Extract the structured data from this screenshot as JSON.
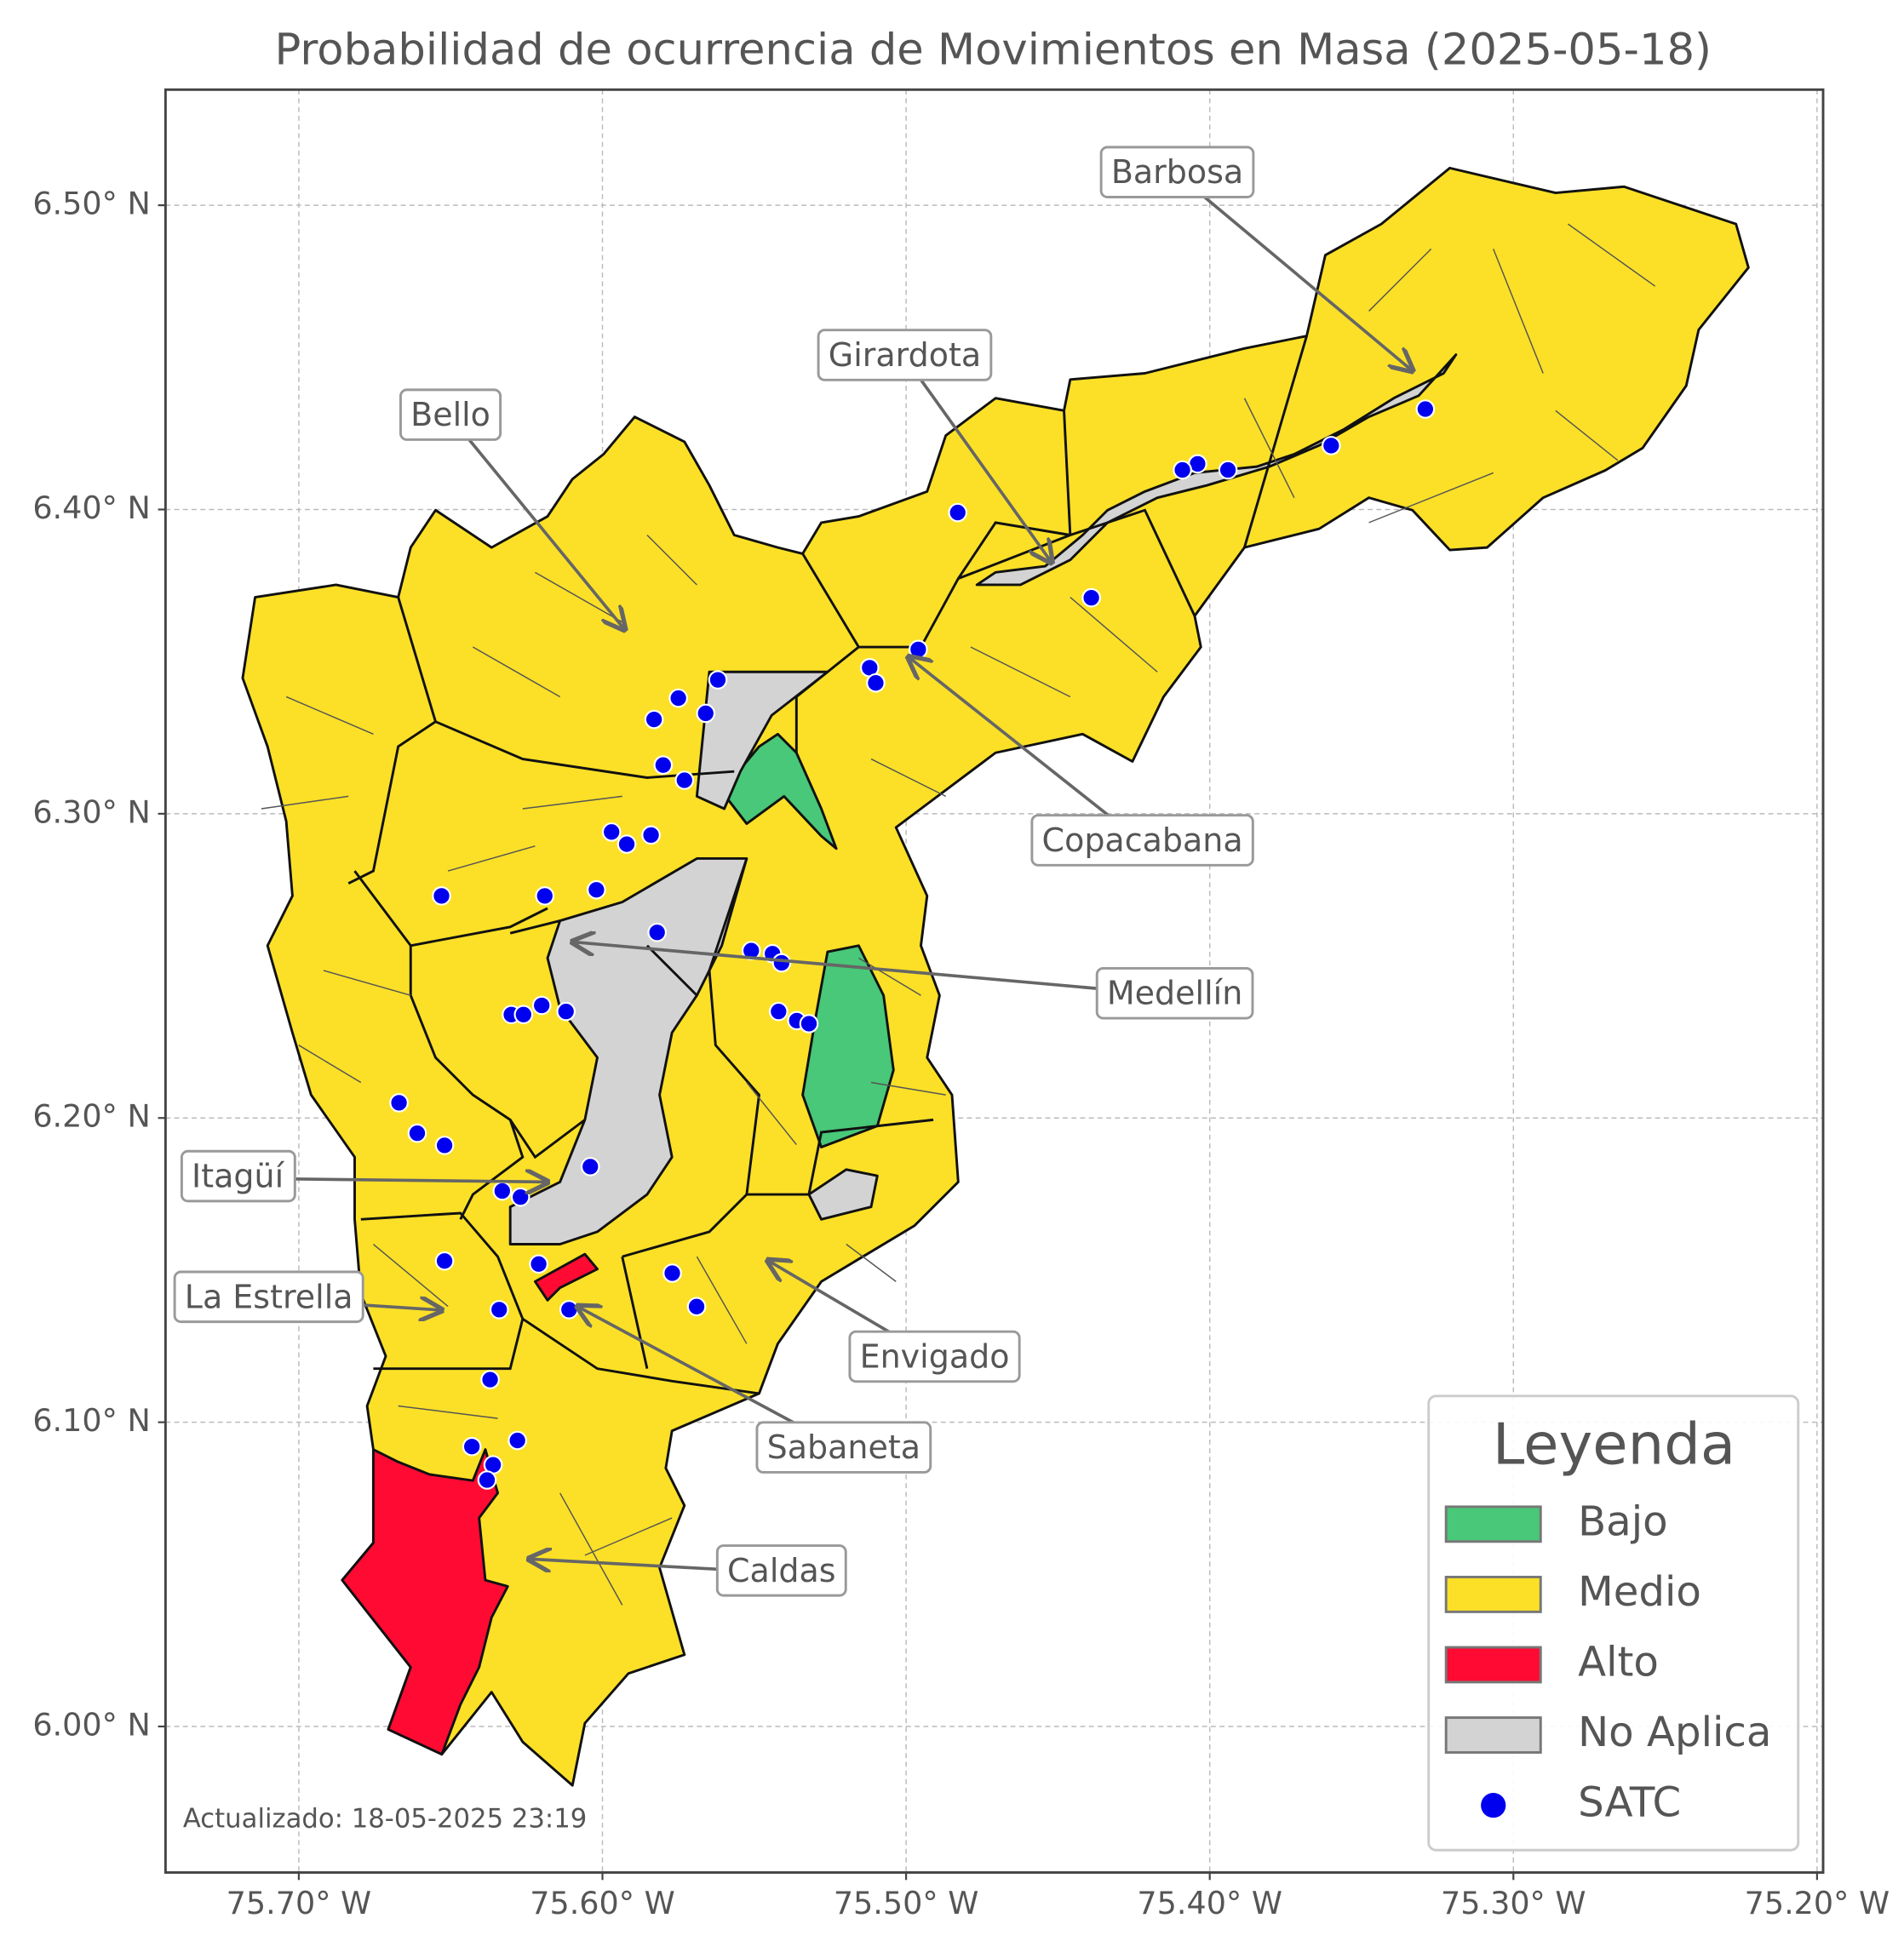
{
  "chart_data": {
    "type": "map",
    "title": "Probabilidad de ocurrencia de Movimientos en Masa (2025-05-18)",
    "footnote": "Actualizado: 18-05-2025 23:19",
    "xlim": [
      -75.7439,
      -75.198
    ],
    "ylim": [
      5.952,
      6.538
    ],
    "xticks": [
      {
        "value": -75.7,
        "label": "75.70° W"
      },
      {
        "value": -75.6,
        "label": "75.60° W"
      },
      {
        "value": -75.5,
        "label": "75.50° W"
      },
      {
        "value": -75.4,
        "label": "75.40° W"
      },
      {
        "value": -75.3,
        "label": "75.30° W"
      },
      {
        "value": -75.2,
        "label": "75.20° W"
      }
    ],
    "yticks": [
      {
        "value": 6.0,
        "label": "6.00° N"
      },
      {
        "value": 6.1,
        "label": "6.10° N"
      },
      {
        "value": 6.2,
        "label": "6.20° N"
      },
      {
        "value": 6.3,
        "label": "6.30° N"
      },
      {
        "value": 6.4,
        "label": "6.40° N"
      },
      {
        "value": 6.5,
        "label": "6.50° N"
      }
    ],
    "grid": true,
    "legend": {
      "title": "Leyenda",
      "corner": "lower right",
      "items": [
        {
          "name": "Bajo",
          "color": "#48c878"
        },
        {
          "name": "Medio",
          "color": "#fbe027"
        },
        {
          "name": "Alto",
          "color": "#ff0a33"
        },
        {
          "name": "No Aplica",
          "color": "#d3d3d3"
        }
      ]
    },
    "annotations": [
      "Barbosa",
      "Girardota",
      "Bello",
      "Copacabana",
      "Medellín",
      "Itagüí",
      "La Estrella",
      "Envigado",
      "Sabaneta",
      "Caldas"
    ],
    "series": [
      {
        "name": "SATC",
        "color": "#0000ee",
        "x": [
          -75.329,
          -75.36,
          -75.394,
          -75.404,
          -75.409,
          -75.483,
          -75.439,
          -75.496,
          -75.512,
          -75.51,
          -75.562,
          -75.575,
          -75.566,
          -75.583,
          -75.58,
          -75.573,
          -75.597,
          -75.584,
          -75.592,
          -75.619,
          -75.602,
          -75.653,
          -75.582,
          -75.551,
          -75.544,
          -75.541,
          -75.62,
          -75.63,
          -75.626,
          -75.612,
          -75.542,
          -75.536,
          -75.532,
          -75.667,
          -75.661,
          -75.652,
          -75.604,
          -75.633,
          -75.627,
          -75.652,
          -75.621,
          -75.577,
          -75.569,
          -75.634,
          -75.611,
          -75.637,
          -75.643,
          -75.628,
          -75.636,
          -75.638
        ],
        "y": [
          6.433,
          6.421,
          6.413,
          6.415,
          6.413,
          6.399,
          6.371,
          6.354,
          6.348,
          6.343,
          6.344,
          6.338,
          6.333,
          6.331,
          6.316,
          6.311,
          6.294,
          6.293,
          6.29,
          6.273,
          6.275,
          6.273,
          6.261,
          6.255,
          6.254,
          6.251,
          6.237,
          6.234,
          6.234,
          6.235,
          6.235,
          6.232,
          6.231,
          6.205,
          6.195,
          6.191,
          6.184,
          6.176,
          6.174,
          6.153,
          6.152,
          6.149,
          6.138,
          6.137,
          6.137,
          6.114,
          6.092,
          6.094,
          6.086,
          6.081
        ]
      }
    ]
  }
}
